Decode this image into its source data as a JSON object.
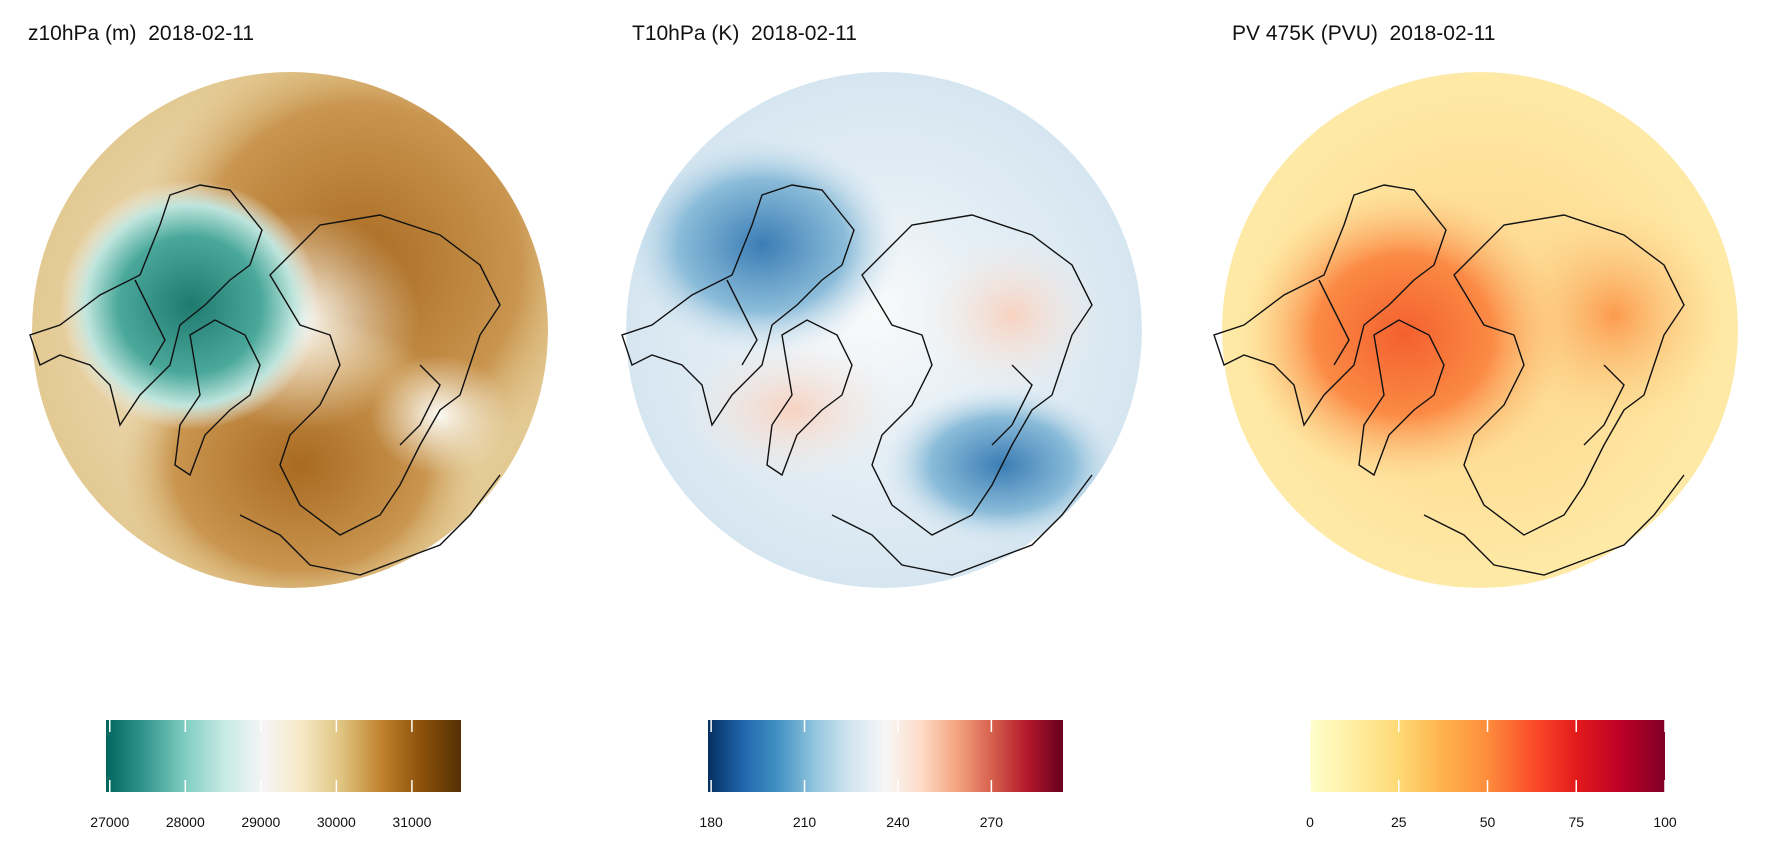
{
  "panels": [
    {
      "title": "z10hPa (m)  2018-02-11",
      "variable": "z10hPa",
      "units": "m",
      "date": "2018-02-11",
      "colormap": [
        "#01665e",
        "#35978f",
        "#80cdc1",
        "#c7eae5",
        "#f5f5f5",
        "#f6e8c3",
        "#dfc27d",
        "#bf812d",
        "#8c510a",
        "#543005"
      ],
      "colorbar_range": [
        26950,
        31650
      ],
      "ticks": [
        {
          "value": 27000,
          "label": "27000"
        },
        {
          "value": 28000,
          "label": "28000"
        },
        {
          "value": 29000,
          "label": "29000"
        },
        {
          "value": 30000,
          "label": "30000"
        },
        {
          "value": 31000,
          "label": "31000"
        }
      ]
    },
    {
      "title": "T10hPa (K)  2018-02-11",
      "variable": "T10hPa",
      "units": "K",
      "date": "2018-02-11",
      "colormap": [
        "#053061",
        "#2166ac",
        "#4393c3",
        "#92c5de",
        "#d1e5f0",
        "#f7f7f7",
        "#fddbc7",
        "#f4a582",
        "#d6604d",
        "#b2182b",
        "#67001f"
      ],
      "colorbar_range": [
        179,
        293
      ],
      "ticks": [
        {
          "value": 180,
          "label": "180"
        },
        {
          "value": 210,
          "label": "210"
        },
        {
          "value": 240,
          "label": "240"
        },
        {
          "value": 270,
          "label": "270"
        }
      ]
    },
    {
      "title": "PV 475K (PVU)  2018-02-11",
      "variable": "PV 475K",
      "units": "PVU",
      "date": "2018-02-11",
      "colormap": [
        "#ffffcc",
        "#ffeda0",
        "#fed976",
        "#feb24c",
        "#fd8d3c",
        "#fc4e2a",
        "#e31a1c",
        "#bd0026",
        "#800026"
      ],
      "colorbar_range": [
        0,
        100
      ],
      "ticks": [
        {
          "value": 0,
          "label": "0"
        },
        {
          "value": 25,
          "label": "25"
        },
        {
          "value": 50,
          "label": "50"
        },
        {
          "value": 75,
          "label": "75"
        },
        {
          "value": 100,
          "label": "100"
        }
      ]
    }
  ]
}
